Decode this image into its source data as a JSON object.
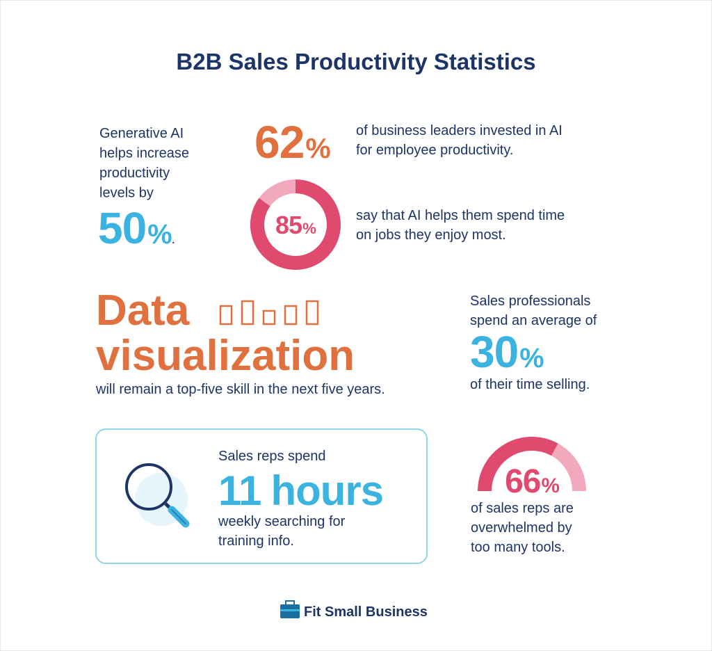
{
  "title": "B2B Sales Productivity Statistics",
  "stats": [
    {
      "lines": [
        "Generative AI",
        "helps increase",
        "productivity",
        "levels by"
      ],
      "value": 50,
      "unit": "%",
      "tail": "."
    },
    {
      "value": 62,
      "unit": "%",
      "lines": [
        "of business leaders invested in AI",
        "for employee productivity."
      ]
    },
    {
      "value": 85,
      "unit": "%",
      "lines": [
        "say that AI helps them spend time",
        "on jobs they enjoy most."
      ]
    },
    {
      "headline": [
        "Data",
        "visualization"
      ],
      "lines": [
        "will remain a top-five skill in the next five years."
      ]
    },
    {
      "intro": [
        "Sales professionals",
        "spend an average of"
      ],
      "value": 30,
      "unit": "%",
      "lines": [
        "of their time selling."
      ]
    },
    {
      "intro": [
        "Sales reps spend"
      ],
      "value": 11,
      "unit": "hours",
      "lines": [
        "weekly searching for",
        "training info."
      ]
    },
    {
      "value": 66,
      "unit": "%",
      "lines": [
        "of sales reps are",
        "overwhelmed by",
        "too many tools."
      ]
    }
  ],
  "footer": "Fit Small Business"
}
